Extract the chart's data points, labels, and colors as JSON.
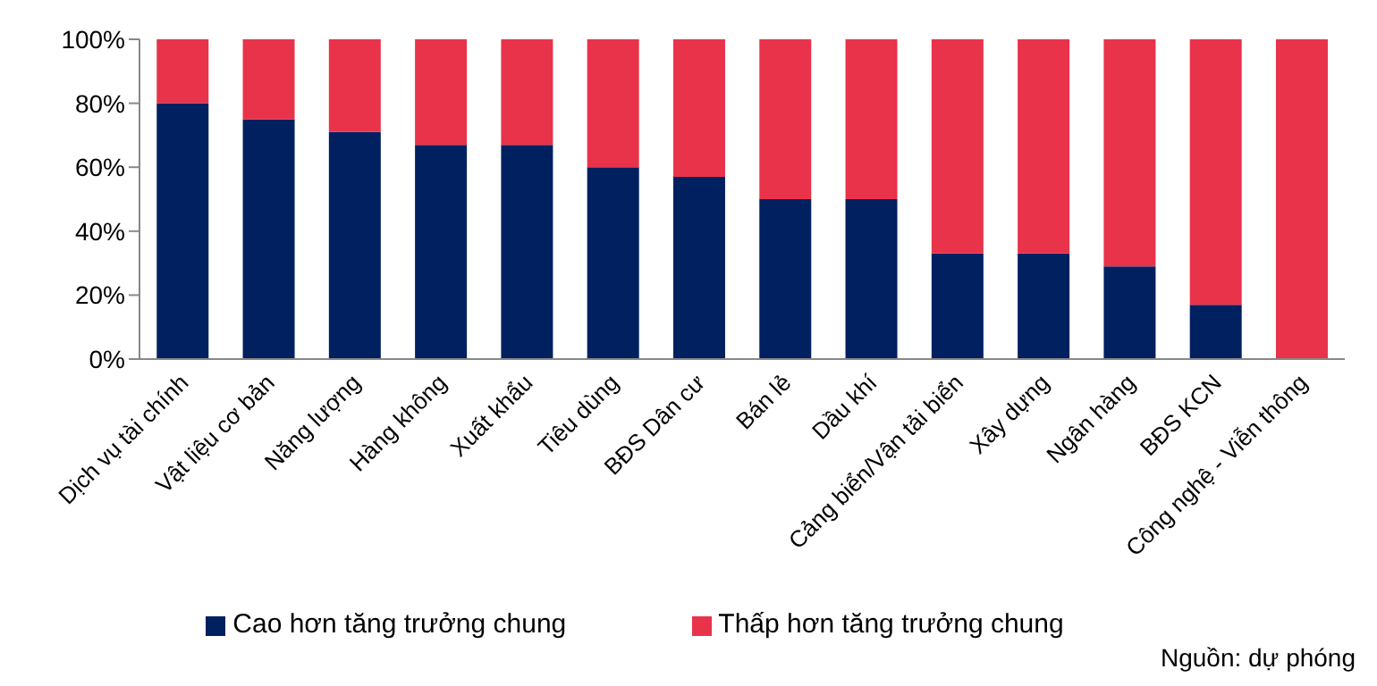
{
  "chart_data": {
    "type": "bar",
    "stacked": true,
    "categories": [
      "Dịch vụ tài chính",
      "Vật liệu cơ bản",
      "Năng lượng",
      "Hàng không",
      "Xuất khẩu",
      "Tiêu dùng",
      "BĐS Dân cư",
      "Bán lẻ",
      "Dầu khí",
      "Cảng biển/Vận tải biển",
      "Xây dựng",
      "Ngân hàng",
      "BĐS KCN",
      "Công nghệ - Viễn thông"
    ],
    "series": [
      {
        "name": "Cao hơn tăng trưởng chung",
        "color": "#002060",
        "values": [
          80,
          75,
          71,
          67,
          67,
          60,
          57,
          50,
          50,
          33,
          33,
          29,
          17,
          0
        ]
      },
      {
        "name": "Thấp hơn tăng trưởng chung",
        "color": "#e8334a",
        "values": [
          20,
          25,
          29,
          33,
          33,
          40,
          43,
          50,
          50,
          67,
          67,
          71,
          83,
          100
        ]
      }
    ],
    "ylim": [
      0,
      100
    ],
    "yticks": [
      {
        "value": 0,
        "label": "0%"
      },
      {
        "value": 20,
        "label": "20%"
      },
      {
        "value": 40,
        "label": "40%"
      },
      {
        "value": 60,
        "label": "60%"
      },
      {
        "value": 80,
        "label": "80%"
      },
      {
        "value": 100,
        "label": "100%"
      }
    ],
    "grid": false,
    "legend": "bottom",
    "annotations": [
      "Nguồn: dự phóng"
    ]
  }
}
